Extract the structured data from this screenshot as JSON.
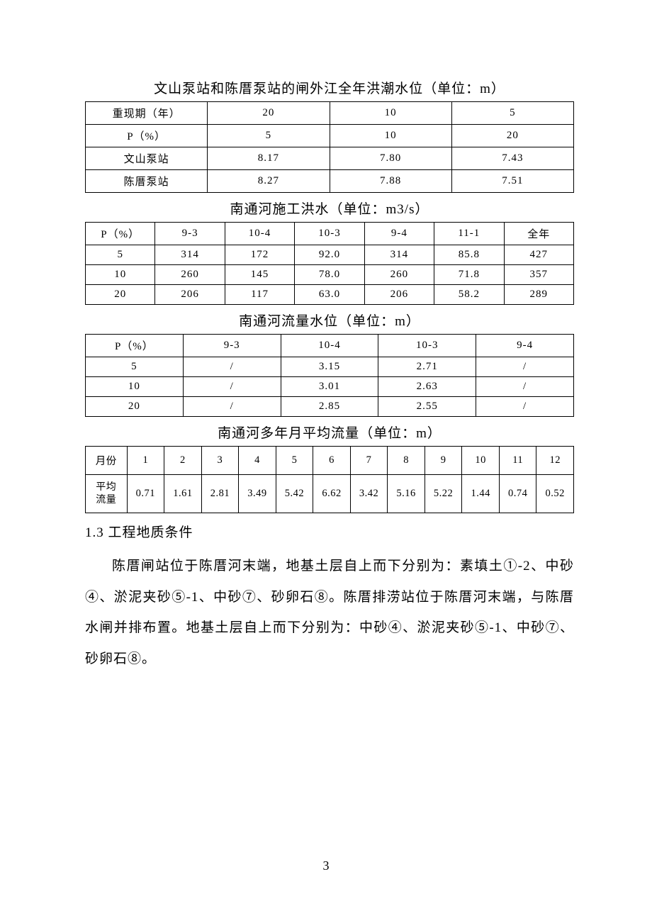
{
  "table1": {
    "caption": "文山泵站和陈厝泵站的闸外江全年洪潮水位（单位：m）",
    "rows": [
      [
        "重现期（年）",
        "20",
        "10",
        "5"
      ],
      [
        "P（%）",
        "5",
        "10",
        "20"
      ],
      [
        "文山泵站",
        "8.17",
        "7.80",
        "7.43"
      ],
      [
        "陈厝泵站",
        "8.27",
        "7.88",
        "7.51"
      ]
    ],
    "col_widths": [
      "25%",
      "25%",
      "25%",
      "25%"
    ]
  },
  "table2": {
    "caption": "南通河施工洪水（单位：m3/s）",
    "rows": [
      [
        "P（%）",
        "9-3",
        "10-4",
        "10-3",
        "9-4",
        "11-1",
        "全年"
      ],
      [
        "5",
        "314",
        "172",
        "92.0",
        "314",
        "85.8",
        "427"
      ],
      [
        "10",
        "260",
        "145",
        "78.0",
        "260",
        "71.8",
        "357"
      ],
      [
        "20",
        "206",
        "117",
        "63.0",
        "206",
        "58.2",
        "289"
      ]
    ],
    "col_widths": [
      "14.28%",
      "14.28%",
      "14.28%",
      "14.28%",
      "14.28%",
      "14.28%",
      "14.28%"
    ]
  },
  "table3": {
    "caption": "南通河流量水位（单位：m）",
    "rows": [
      [
        "P（%）",
        "9-3",
        "10-4",
        "10-3",
        "9-4"
      ],
      [
        "5",
        "/",
        "3.15",
        "2.71",
        "/"
      ],
      [
        "10",
        "/",
        "3.01",
        "2.63",
        "/"
      ],
      [
        "20",
        "/",
        "2.85",
        "2.55",
        "/"
      ]
    ],
    "col_widths": [
      "20%",
      "20%",
      "20%",
      "20%",
      "20%"
    ]
  },
  "table4": {
    "caption": "南通河多年月平均流量（单位：m）",
    "rows": [
      [
        "月份",
        "1",
        "2",
        "3",
        "4",
        "5",
        "6",
        "7",
        "8",
        "9",
        "10",
        "11",
        "12"
      ],
      [
        "平均流量",
        "0.71",
        "1.61",
        "2.81",
        "3.49",
        "5.42",
        "6.62",
        "3.42",
        "5.16",
        "5.22",
        "1.44",
        "0.74",
        "0.52"
      ]
    ],
    "col_widths": [
      "8.5%",
      "7.62%",
      "7.62%",
      "7.62%",
      "7.62%",
      "7.62%",
      "7.62%",
      "7.62%",
      "7.62%",
      "7.62%",
      "7.62%",
      "7.62%",
      "7.62%"
    ]
  },
  "section": {
    "heading": "1.3 工程地质条件",
    "paragraph": "陈厝闸站位于陈厝河末端，地基土层自上而下分别为：素填土①-2、中砂④、淤泥夹砂⑤-1、中砂⑦、砂卵石⑧。陈厝排涝站位于陈厝河末端，与陈厝水闸并排布置。地基土层自上而下分别为：中砂④、淤泥夹砂⑤-1、中砂⑦、砂卵石⑧。"
  },
  "page_number": "3",
  "styling": {
    "background_color": "#ffffff",
    "text_color": "#000000",
    "border_color": "#000000",
    "caption_fontsize": 19,
    "cell_fontsize": 15,
    "body_fontsize": 19,
    "line_height": 2.3,
    "font_family": "SimSun"
  }
}
